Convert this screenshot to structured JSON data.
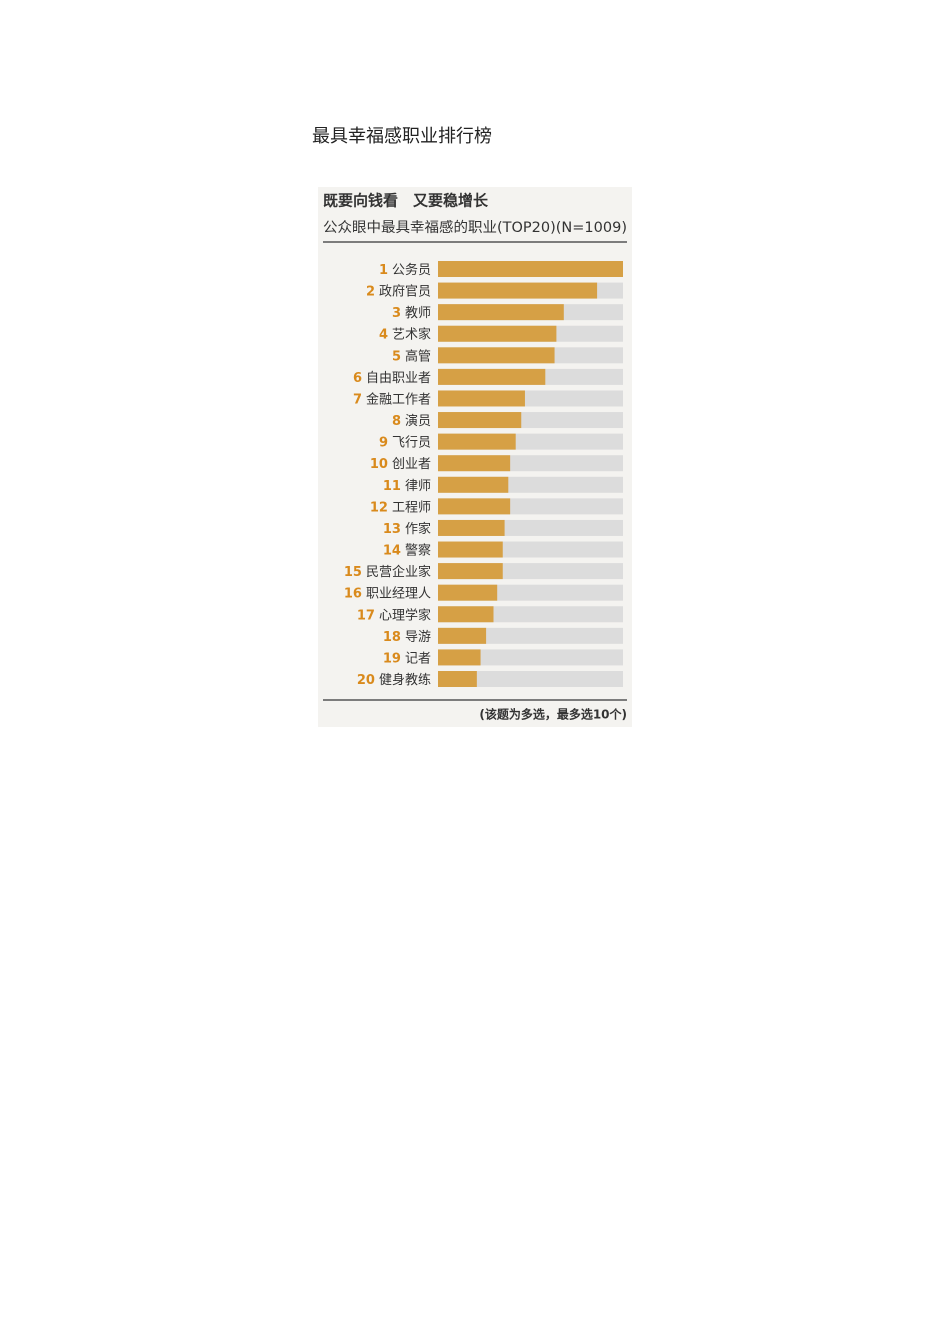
{
  "document": {
    "title": "最具幸福感职业排行榜"
  },
  "chart_data": {
    "type": "bar",
    "orientation": "horizontal",
    "title": "既要向钱看　又要稳增长",
    "subtitle": "公众眼中最具幸福感的职业(TOP20)(N=1009)",
    "note": "(该题为多选，最多选10个)",
    "ranks": [
      1,
      2,
      3,
      4,
      5,
      6,
      7,
      8,
      9,
      10,
      11,
      12,
      13,
      14,
      15,
      16,
      17,
      18,
      19,
      20
    ],
    "categories": [
      "公务员",
      "政府官员",
      "教师",
      "艺术家",
      "高管",
      "自由职业者",
      "金融工作者",
      "演员",
      "飞行员",
      "创业者",
      "律师",
      "工程师",
      "作家",
      "警察",
      "民营企业家",
      "职业经理人",
      "心理学家",
      "导游",
      "记者",
      "健身教练"
    ],
    "values": [
      100,
      86,
      68,
      64,
      63,
      58,
      47,
      45,
      42,
      39,
      38,
      39,
      36,
      35,
      35,
      32,
      30,
      26,
      23,
      21
    ],
    "xlim": [
      0,
      100
    ],
    "color": "#d6a045",
    "track_color": "#dcdcdc",
    "rank_color": "#d98a1c"
  }
}
